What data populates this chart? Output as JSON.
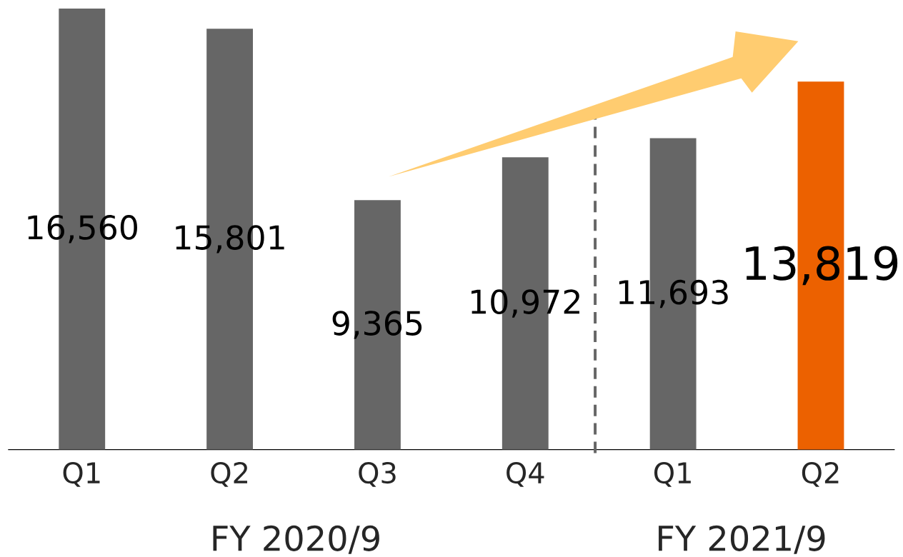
{
  "chart_data": {
    "type": "bar",
    "categories": [
      "Q1",
      "Q2",
      "Q3",
      "Q4",
      "Q1",
      "Q2"
    ],
    "values": [
      16560,
      15801,
      9365,
      10972,
      11693,
      13819
    ],
    "colors": [
      "#666666",
      "#666666",
      "#666666",
      "#666666",
      "#666666",
      "#ec6100"
    ],
    "value_labels": [
      "16,560",
      "15,801",
      "9,365",
      "10,972",
      "11,693",
      "13,819"
    ],
    "annotations": [
      "FY 2020/9",
      "FY 2021/9"
    ]
  }
}
